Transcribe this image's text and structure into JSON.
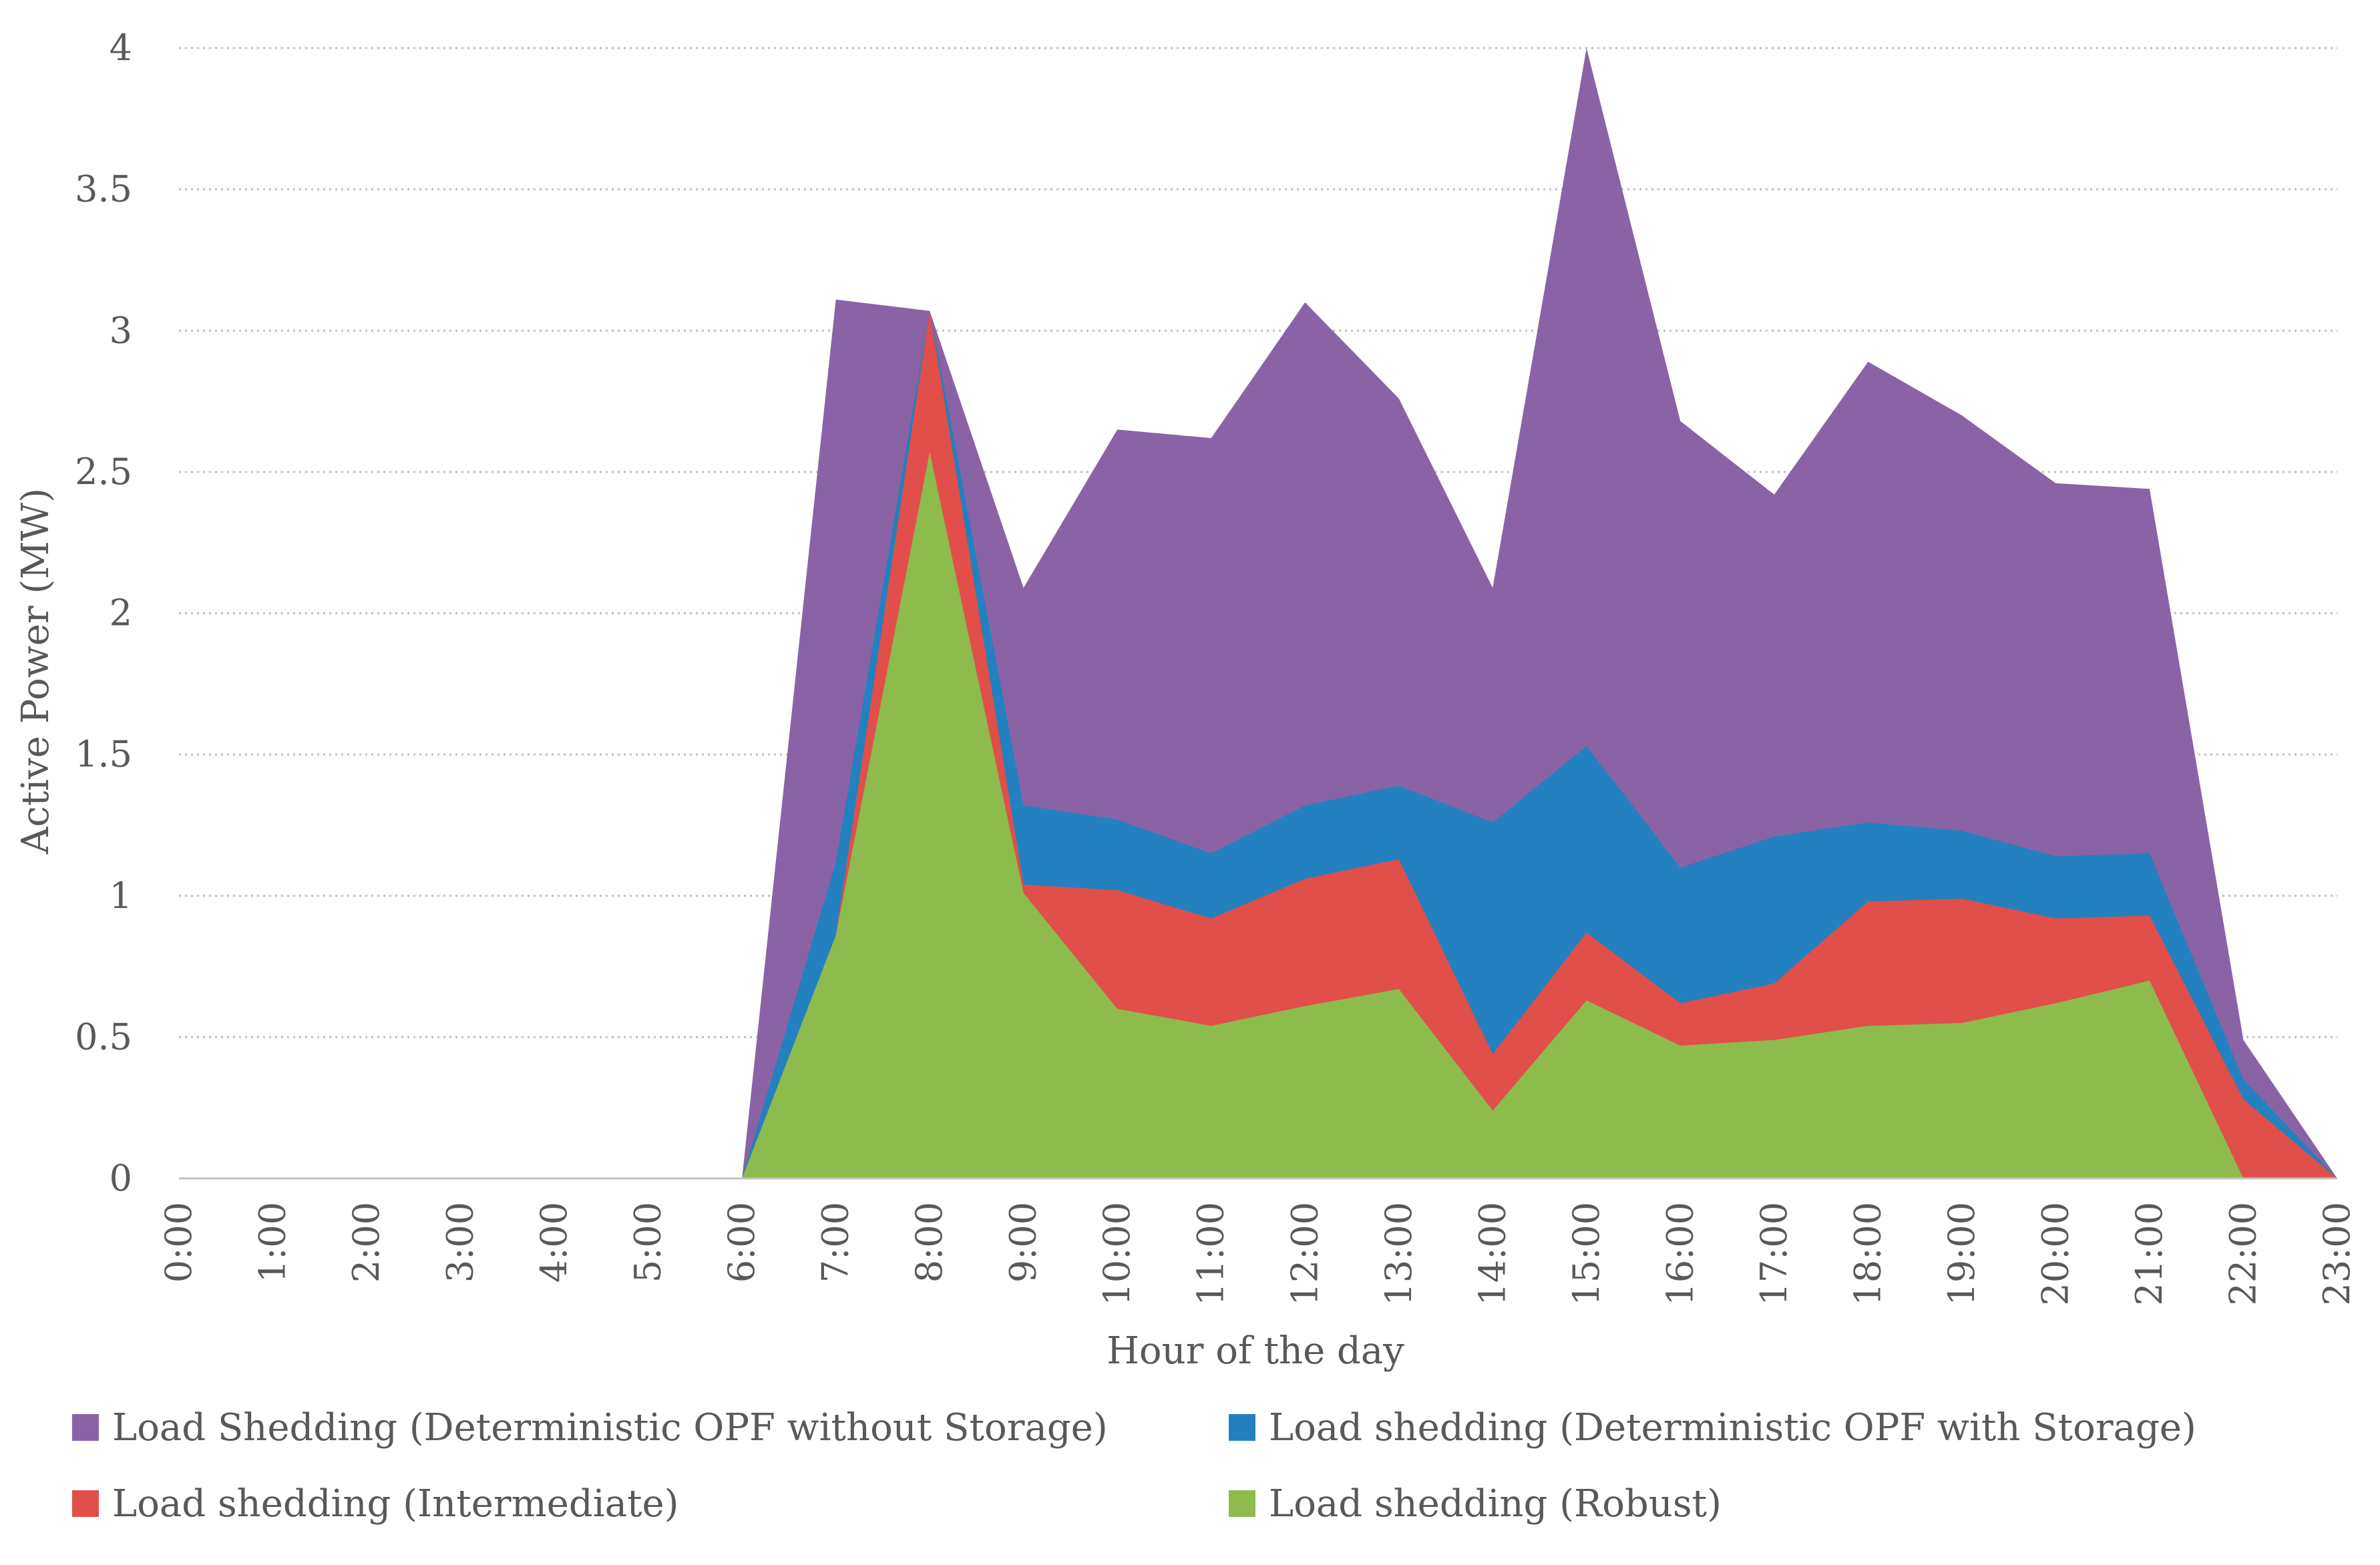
{
  "chart_data": {
    "type": "area",
    "xlabel": "Hour of the day",
    "ylabel": "Active Power (MW)",
    "ylim": [
      0,
      4
    ],
    "yticks": [
      "0",
      "0.5",
      "1",
      "1.5",
      "2",
      "2.5",
      "3",
      "3.5",
      "4"
    ],
    "categories": [
      "0:00",
      "1:00",
      "2:00",
      "3:00",
      "4:00",
      "5:00",
      "6:00",
      "7:00",
      "8:00",
      "9:00",
      "10:00",
      "11:00",
      "12:00",
      "13:00",
      "14:00",
      "15:00",
      "16:00",
      "17:00",
      "18:00",
      "19:00",
      "20:00",
      "21:00",
      "22:00",
      "23:00"
    ],
    "grid": true,
    "legend_position": "bottom",
    "series": [
      {
        "name": "Load Shedding (Deterministic OPF without Storage)",
        "color": "#8A63A6",
        "values": [
          0,
          0,
          0,
          0,
          0,
          0,
          0,
          3.11,
          3.07,
          2.09,
          2.65,
          2.62,
          3.1,
          2.76,
          2.09,
          4.0,
          2.68,
          2.42,
          2.89,
          2.7,
          2.46,
          2.44,
          0.49,
          0
        ]
      },
      {
        "name": "Load shedding (Deterministic OPF with Storage)",
        "color": "#2381BF",
        "values": [
          0,
          0,
          0,
          0,
          0,
          0,
          0,
          1.12,
          3.07,
          1.32,
          1.27,
          1.15,
          1.32,
          1.39,
          1.26,
          1.53,
          1.1,
          1.21,
          1.26,
          1.23,
          1.14,
          1.15,
          0.35,
          0
        ]
      },
      {
        "name": "Load shedding (Intermediate)",
        "color": "#E04F4A",
        "values": [
          0,
          0,
          0,
          0,
          0,
          0,
          0,
          0.86,
          3.07,
          1.04,
          1.02,
          0.92,
          1.06,
          1.13,
          0.44,
          0.87,
          0.62,
          0.69,
          0.98,
          0.99,
          0.92,
          0.93,
          0.28,
          0
        ]
      },
      {
        "name": "Load shedding (Robust)",
        "color": "#8DBB4E",
        "values": [
          0,
          0,
          0,
          0,
          0,
          0,
          0,
          0.86,
          2.57,
          1.01,
          0.6,
          0.54,
          0.61,
          0.67,
          0.24,
          0.63,
          0.47,
          0.49,
          0.54,
          0.55,
          0.62,
          0.7,
          0,
          0
        ]
      }
    ]
  }
}
